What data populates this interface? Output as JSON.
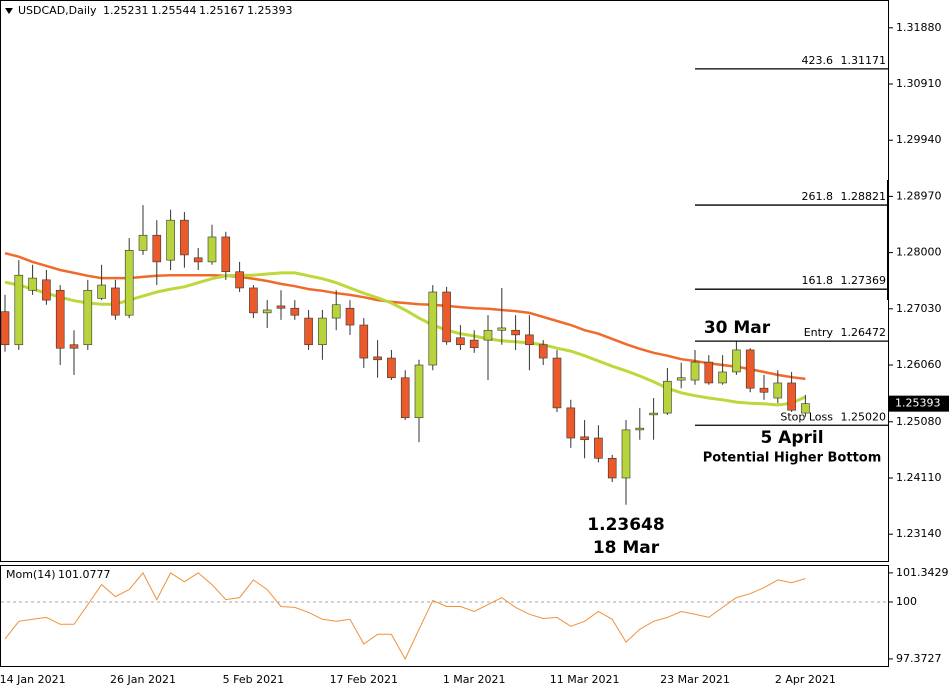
{
  "chart_data": [
    {
      "type": "candlestick",
      "title": "USDCAD,Daily",
      "categories": [
        null,
        null,
        "14 Jan 2021",
        null,
        null,
        null,
        null,
        null,
        null,
        null,
        "26 Jan 2021",
        null,
        null,
        null,
        null,
        null,
        null,
        null,
        "5 Feb 2021",
        null,
        null,
        null,
        null,
        null,
        null,
        null,
        "17 Feb 2021",
        null,
        null,
        null,
        null,
        null,
        null,
        null,
        "1 Mar 2021",
        null,
        null,
        null,
        null,
        null,
        null,
        null,
        "11 Mar 2021",
        null,
        null,
        null,
        null,
        null,
        null,
        null,
        "23 Mar 2021",
        null,
        null,
        null,
        null,
        null,
        null,
        null,
        "2 Apr 2021"
      ],
      "open": [
        1.2698,
        1.2641,
        1.2735,
        1.2753,
        1.2735,
        1.2641,
        1.2641,
        1.2721,
        1.2739,
        1.2692,
        1.2804,
        1.283,
        1.2787,
        1.2856,
        1.2791,
        1.2784,
        1.2827,
        1.2767,
        1.2739,
        1.2696,
        1.2708,
        1.2704,
        1.2687,
        1.2641,
        1.2687,
        1.2704,
        1.2675,
        1.262,
        1.2618,
        1.2584,
        1.2515,
        1.2606,
        1.2732,
        1.2653,
        1.2649,
        1.2649,
        1.2666,
        1.2666,
        1.2658,
        1.2641,
        1.2618,
        1.2532,
        1.2482,
        1.248,
        1.2445,
        1.2411,
        1.2494,
        1.252,
        1.2523,
        1.258,
        1.258,
        1.2611,
        1.2575,
        1.2594,
        1.2632,
        1.2566,
        1.2549,
        1.2575,
        1.25231
      ],
      "high": [
        1.2727,
        1.2787,
        1.2779,
        1.277,
        1.2744,
        1.2666,
        1.2753,
        1.2779,
        1.2753,
        1.2825,
        1.2882,
        1.2856,
        1.2874,
        1.287,
        1.2808,
        1.2848,
        1.2836,
        1.2784,
        1.2744,
        1.2718,
        1.2735,
        1.2718,
        1.2701,
        1.2701,
        1.2735,
        1.2718,
        1.2687,
        1.2649,
        1.2632,
        1.2597,
        1.2615,
        1.2744,
        1.2741,
        1.2675,
        1.2666,
        1.2692,
        1.2739,
        1.2692,
        1.2692,
        1.2649,
        1.2632,
        1.2546,
        1.2511,
        1.2502,
        1.2451,
        1.2511,
        1.2532,
        1.2549,
        1.2601,
        1.261,
        1.2632,
        1.2623,
        1.2623,
        1.2647,
        1.2635,
        1.2589,
        1.2597,
        1.2594,
        1.25544
      ],
      "low": [
        1.2629,
        1.2632,
        1.2727,
        1.271,
        1.2606,
        1.2589,
        1.2632,
        1.2718,
        1.2684,
        1.2687,
        1.2796,
        1.2744,
        1.277,
        1.2774,
        1.277,
        1.2779,
        1.2753,
        1.2732,
        1.2687,
        1.267,
        1.2684,
        1.2684,
        1.2632,
        1.2615,
        1.2666,
        1.2658,
        1.2601,
        1.2584,
        1.258,
        1.2511,
        1.2473,
        1.2597,
        1.2641,
        1.2632,
        1.2627,
        1.258,
        1.2641,
        1.2632,
        1.2597,
        1.2606,
        1.2525,
        1.2463,
        1.2445,
        1.2438,
        1.2404,
        1.23648,
        1.2477,
        1.2477,
        1.252,
        1.2566,
        1.2572,
        1.2572,
        1.2572,
        1.2589,
        1.2559,
        1.2546,
        1.254,
        1.2525,
        1.25167
      ],
      "close": [
        1.2641,
        1.2761,
        1.2756,
        1.2718,
        1.2635,
        1.2635,
        1.2735,
        1.2744,
        1.2692,
        1.2804,
        1.283,
        1.2784,
        1.2856,
        1.2796,
        1.2784,
        1.2827,
        1.2767,
        1.2739,
        1.2696,
        1.2701,
        1.2704,
        1.2692,
        1.2641,
        1.2687,
        1.271,
        1.2675,
        1.2618,
        1.2615,
        1.2584,
        1.2515,
        1.2606,
        1.2732,
        1.2646,
        1.2641,
        1.2636,
        1.2666,
        1.267,
        1.2658,
        1.2641,
        1.2618,
        1.2532,
        1.248,
        1.2477,
        1.2445,
        1.2411,
        1.2494,
        1.2497,
        1.2523,
        1.2578,
        1.2584,
        1.2611,
        1.2575,
        1.2594,
        1.2632,
        1.2566,
        1.2559,
        1.2575,
        1.2528,
        1.25393
      ],
      "up_color": "#b8d43c",
      "down_color": "#ec5a2a",
      "series": [
        {
          "color": "#f06a2c",
          "values": [
            1.2799,
            1.2793,
            1.2784,
            1.2777,
            1.277,
            1.2765,
            1.276,
            1.2756,
            1.2756,
            1.2756,
            1.2758,
            1.276,
            1.2761,
            1.2761,
            1.2761,
            1.2761,
            1.276,
            1.2758,
            1.2755,
            1.2751,
            1.2746,
            1.2742,
            1.2737,
            1.2734,
            1.273,
            1.2727,
            1.2723,
            1.2718,
            1.2715,
            1.2713,
            1.2711,
            1.271,
            1.2708,
            1.2706,
            1.2704,
            1.2703,
            1.2701,
            1.2699,
            1.2696,
            1.2689,
            1.2682,
            1.2675,
            1.2666,
            1.266,
            1.2651,
            1.2642,
            1.2634,
            1.2627,
            1.2622,
            1.2616,
            1.2613,
            1.2609,
            1.2606,
            1.2603,
            1.2599,
            1.2594,
            1.2589,
            1.2585,
            1.2582
          ]
        },
        {
          "color": "#bcd83a",
          "values": [
            1.2749,
            1.2744,
            1.2737,
            1.273,
            1.2723,
            1.2717,
            1.2713,
            1.2711,
            1.2711,
            1.2718,
            1.2725,
            1.2732,
            1.2737,
            1.2741,
            1.2748,
            1.2755,
            1.276,
            1.2761,
            1.2761,
            1.2763,
            1.2765,
            1.2765,
            1.276,
            1.2755,
            1.2748,
            1.2739,
            1.273,
            1.2722,
            1.2713,
            1.2701,
            1.2687,
            1.2675,
            1.2666,
            1.266,
            1.2656,
            1.2651,
            1.2648,
            1.2646,
            1.2644,
            1.2641,
            1.2635,
            1.263,
            1.2622,
            1.2613,
            1.2604,
            1.2596,
            1.2587,
            1.2577,
            1.2566,
            1.2558,
            1.2553,
            1.2549,
            1.2546,
            1.2542,
            1.254,
            1.2539,
            1.2537,
            1.254,
            1.2551
          ]
        }
      ],
      "ylim": [
        1.2266,
        1.3236
      ],
      "yticks": [
        {
          "value": 1.3188,
          "label": "1.31880"
        },
        {
          "value": 1.3091,
          "label": "1.30910"
        },
        {
          "value": 1.2994,
          "label": "1.29940"
        },
        {
          "value": 1.2897,
          "label": "1.28970"
        },
        {
          "value": 1.28,
          "label": "1.28000"
        },
        {
          "value": 1.2703,
          "label": "1.27030"
        },
        {
          "value": 1.2606,
          "label": "1.26060"
        },
        {
          "value": 1.2508,
          "label": "1.25080"
        },
        {
          "value": 1.2411,
          "label": "1.24110"
        },
        {
          "value": 1.2314,
          "label": "1.23140"
        }
      ],
      "levels": [
        {
          "name": "423.6",
          "value": 1.31171
        },
        {
          "name": "261.8",
          "value": 1.28821
        },
        {
          "name": "161.8",
          "value": 1.27369
        },
        {
          "name": "Entry",
          "value": 1.26472
        },
        {
          "name": "Stop Loss",
          "value": 1.2502,
          "value_label": "1.25020"
        }
      ],
      "annotations": [
        "30 Mar",
        "5 April",
        "Potential Higher Bottom",
        "1.23648",
        "18 Mar"
      ]
    },
    {
      "type": "line",
      "title": "Mom(14)",
      "series": [
        {
          "color": "#f0903a",
          "values": [
            98.29,
            99.11,
            99.2,
            99.29,
            98.97,
            98.97,
            99.88,
            100.8,
            100.25,
            100.57,
            101.34,
            100.11,
            101.34,
            100.93,
            101.34,
            100.8,
            100.11,
            100.2,
            101.02,
            100.57,
            99.79,
            99.75,
            99.52,
            99.2,
            99.11,
            99.2,
            98.06,
            98.51,
            98.51,
            97.37,
            98.74,
            100.07,
            99.79,
            99.79,
            99.56,
            99.88,
            100.2,
            99.75,
            99.43,
            99.24,
            99.29,
            98.88,
            99.11,
            99.56,
            99.2,
            98.15,
            98.74,
            99.11,
            99.29,
            99.56,
            99.43,
            99.29,
            99.75,
            100.2,
            100.38,
            100.66,
            101.02,
            100.89,
            101.0777
          ]
        }
      ],
      "ylim": [
        97.0,
        101.66
      ],
      "yticks": [
        101.3429,
        100,
        97.3727
      ],
      "level": 100
    }
  ]
}
